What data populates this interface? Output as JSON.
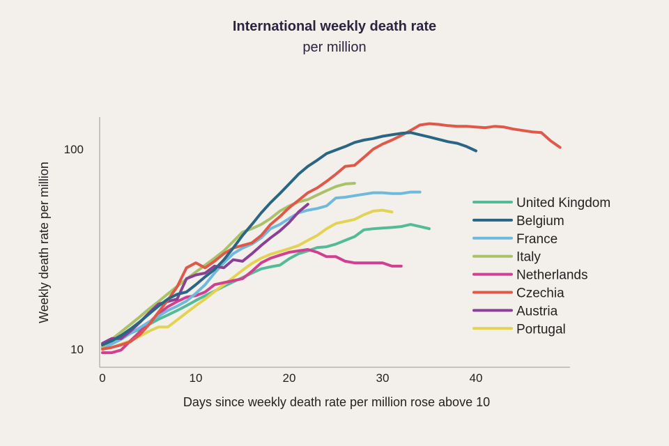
{
  "chart_data": {
    "type": "line",
    "title": "International weekly death rate",
    "subtitle": "per million",
    "xlabel": "Days since weekly death rate per million rose above 10",
    "ylabel": "Weekly death rate per million",
    "yscale": "log",
    "xlim": [
      0,
      50
    ],
    "ylim": [
      8.1,
      144
    ],
    "xticks": [
      0,
      10,
      20,
      30,
      40
    ],
    "xtick_labels": [
      "0",
      "10",
      "20",
      "30",
      "40"
    ],
    "yticks": [
      10,
      100
    ],
    "ytick_labels": [
      "10",
      "100"
    ],
    "grid": false,
    "legend_position": "right",
    "series": [
      {
        "name": "United Kingdom",
        "color": "#54bb98",
        "values": [
          10.3,
          10.8,
          11.3,
          12.0,
          12.6,
          13.3,
          14.1,
          14.8,
          15.6,
          16.5,
          17.5,
          18.5,
          19.5,
          20.6,
          21.7,
          22.8,
          24.0,
          25.2,
          25.8,
          26.3,
          28.3,
          30.0,
          31.0,
          32.2,
          32.5,
          33.5,
          35.0,
          36.5,
          39.5,
          40.0,
          40.3,
          40.6,
          41.0,
          42.0,
          41.0,
          40.0
        ]
      },
      {
        "name": "Belgium",
        "color": "#2a6684",
        "values": [
          10.5,
          11.0,
          11.7,
          12.6,
          13.7,
          15.0,
          16.4,
          17.8,
          18.8,
          19.3,
          21.0,
          23.0,
          25.0,
          28.0,
          32.0,
          37.0,
          42.0,
          48.0,
          54.0,
          60.0,
          67.0,
          75.0,
          82.0,
          88.0,
          95.0,
          99.0,
          103.0,
          108.0,
          111.0,
          113.0,
          116.0,
          118.0,
          120.0,
          121.0,
          118.0,
          115.0,
          112.0,
          109.0,
          107.0,
          103.0,
          98.0
        ]
      },
      {
        "name": "France",
        "color": "#6fb9dc",
        "values": [
          10.2,
          10.6,
          11.2,
          12.0,
          12.8,
          13.7,
          14.6,
          15.6,
          16.4,
          17.4,
          19.0,
          21.0,
          24.0,
          27.0,
          30.0,
          32.0,
          33.5,
          36.0,
          40.0,
          42.0,
          45.0,
          48.0,
          49.5,
          50.5,
          52.0,
          57.0,
          57.5,
          58.5,
          59.5,
          60.5,
          60.5,
          60.0,
          60.0,
          61.0,
          61.0
        ]
      },
      {
        "name": "Italy",
        "color": "#a9c26a",
        "values": [
          10.3,
          11.2,
          12.2,
          13.3,
          14.5,
          15.9,
          17.3,
          18.9,
          20.6,
          22.4,
          24.3,
          26.3,
          28.5,
          31.0,
          34.5,
          38.5,
          40.0,
          42.0,
          45.0,
          49.0,
          52.0,
          54.5,
          56.0,
          59.0,
          62.0,
          65.0,
          67.0,
          67.5
        ]
      },
      {
        "name": "Netherlands",
        "color": "#d13f91",
        "values": [
          9.6,
          9.6,
          9.9,
          11.0,
          12.2,
          13.6,
          15.0,
          16.3,
          17.3,
          18.2,
          18.5,
          19.3,
          21.0,
          21.5,
          22.0,
          22.5,
          24.5,
          27.0,
          28.5,
          29.5,
          30.5,
          31.0,
          31.5,
          30.5,
          29.0,
          29.0,
          27.5,
          27.0,
          27.0,
          27.0,
          27.0,
          26.0,
          26.0
        ]
      },
      {
        "name": "Czechia",
        "color": "#e0584a",
        "values": [
          10.0,
          10.2,
          10.5,
          10.9,
          11.8,
          13.3,
          15.3,
          17.6,
          20.5,
          25.5,
          27.0,
          25.5,
          27.5,
          30.0,
          32.0,
          33.0,
          34.0,
          37.0,
          42.0,
          46.0,
          51.0,
          55.5,
          60.5,
          64.0,
          69.0,
          75.0,
          82.0,
          83.0,
          91.0,
          100.0,
          106.0,
          111.0,
          117.0,
          124.0,
          132.0,
          134.0,
          133.0,
          131.0,
          130.0,
          130.0,
          129.0,
          128.0,
          130.0,
          129.0,
          126.0,
          124.0,
          122.0,
          121.0,
          110.0,
          102.0
        ]
      },
      {
        "name": "Austria",
        "color": "#8a4095",
        "values": [
          10.7,
          11.3,
          11.3,
          12.3,
          13.6,
          15.2,
          16.8,
          17.3,
          17.8,
          22.5,
          23.5,
          24.0,
          26.0,
          25.5,
          28.0,
          27.5,
          30.0,
          33.0,
          36.0,
          39.0,
          43.0,
          48.5,
          53.0
        ]
      },
      {
        "name": "Portugal",
        "color": "#e3d353",
        "values": [
          10.0,
          10.2,
          10.6,
          11.0,
          11.6,
          12.3,
          12.9,
          12.9,
          14.0,
          15.2,
          16.5,
          17.8,
          19.4,
          21.0,
          22.8,
          24.8,
          26.8,
          28.5,
          29.8,
          30.8,
          31.8,
          33.0,
          35.0,
          37.0,
          40.0,
          42.5,
          43.5,
          44.5,
          47.0,
          49.0,
          49.5,
          48.5
        ]
      }
    ]
  }
}
